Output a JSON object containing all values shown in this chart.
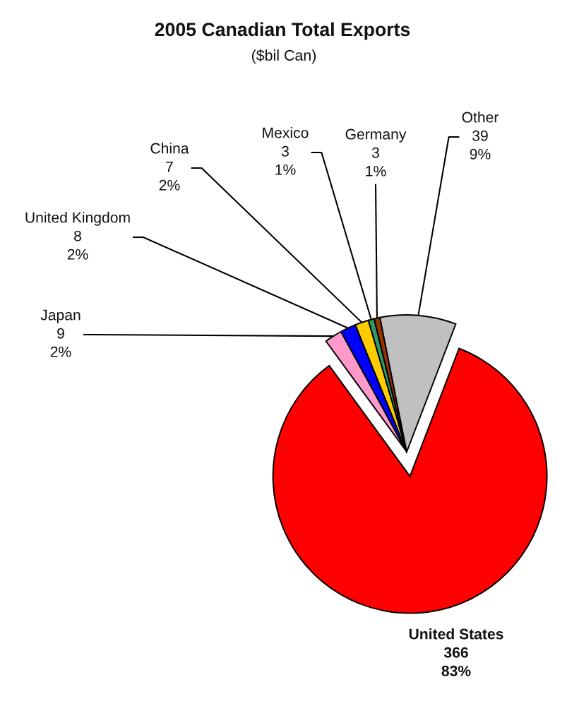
{
  "chart_data": {
    "type": "pie",
    "title": "2005 Canadian Total Exports",
    "subtitle": "($bil Can)",
    "categories": [
      "United States",
      "Japan",
      "United Kingdom",
      "China",
      "Mexico",
      "Germany",
      "Other"
    ],
    "values": [
      366,
      9,
      8,
      7,
      3,
      3,
      39
    ],
    "colors": [
      "#ff0000",
      "#ff99cc",
      "#0000ff",
      "#ffcc00",
      "#339966",
      "#993300",
      "#c0c0c0"
    ],
    "value_labels": [
      "366\n83%",
      "9\n2%",
      "8\n2%",
      "7\n2%",
      "3\n1%",
      "3\n1%",
      "39\n9%"
    ]
  }
}
